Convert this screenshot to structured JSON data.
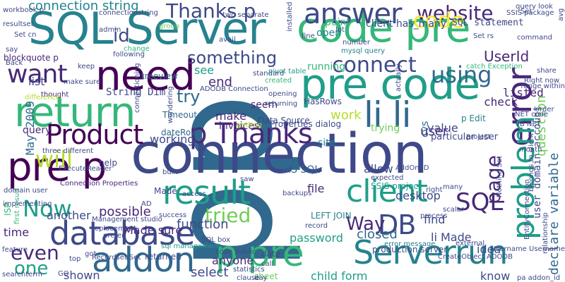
{
  "palette": {
    "p0": "#440154",
    "p1": "#482878",
    "p2": "#3e4989",
    "p3": "#31688e",
    "p4": "#26828e",
    "p5": "#1f9e89",
    "p6": "#35b779",
    "p7": "#6ece58",
    "p8": "#b5de2b",
    "p9": "#fde725"
  },
  "words": [
    {
      "text": "pp",
      "color": "p3"
    },
    {
      "text": "connection",
      "color": "p2"
    },
    {
      "text": "SQL Server",
      "color": "p4"
    },
    {
      "text": "code pre",
      "color": "p6"
    },
    {
      "text": "pre code",
      "color": "p5"
    },
    {
      "text": "need",
      "color": "p0"
    },
    {
      "text": "return",
      "color": "p6"
    },
    {
      "text": "pre p",
      "color": "p0"
    },
    {
      "text": "error",
      "color": "p1"
    },
    {
      "text": "database",
      "color": "p2"
    },
    {
      "text": "addon",
      "color": "p3"
    },
    {
      "text": "result",
      "color": "p5"
    },
    {
      "text": "p pre",
      "color": "p6"
    },
    {
      "text": "li li",
      "color": "p3"
    },
    {
      "text": "Product",
      "color": "p0"
    },
    {
      "text": "p Thanks",
      "color": "p1"
    },
    {
      "text": "want",
      "color": "p1"
    },
    {
      "text": "client",
      "color": "p5"
    },
    {
      "text": "Serverrun",
      "color": "p4"
    },
    {
      "text": "problem",
      "color": "p5"
    },
    {
      "text": "answer",
      "color": "p2"
    },
    {
      "text": "website",
      "color": "p1"
    },
    {
      "text": "Thanks p",
      "color": "p2"
    },
    {
      "text": "connect",
      "color": "p2"
    },
    {
      "text": "using",
      "color": "p3"
    },
    {
      "text": "id",
      "color": "p2"
    },
    {
      "text": "will",
      "color": "p8"
    },
    {
      "text": "Now",
      "color": "p5"
    },
    {
      "text": "DB",
      "color": "p2"
    },
    {
      "text": "SQL",
      "color": "p1"
    },
    {
      "text": "page",
      "color": "p1"
    },
    {
      "text": "even",
      "color": "p1"
    },
    {
      "text": "one",
      "color": "p5"
    },
    {
      "text": "tried",
      "color": "p7"
    },
    {
      "text": "Way",
      "color": "p1"
    },
    {
      "text": "something",
      "color": "p2"
    },
    {
      "text": "try",
      "color": "p3"
    },
    {
      "text": "connection string",
      "color": "p4"
    },
    {
      "text": "code",
      "color": "p9"
    },
    {
      "text": "UserId",
      "color": "p1"
    },
    {
      "text": "declare variable",
      "color": "p3"
    },
    {
      "text": "user domain account",
      "color": "p2"
    },
    {
      "text": "question",
      "color": "p7"
    },
    {
      "text": "May 2009",
      "color": "p3"
    },
    {
      "text": "SQL statement",
      "color": "p2"
    },
    {
      "text": "String Dim",
      "color": "p2"
    },
    {
      "text": "work",
      "color": "p8"
    },
    {
      "text": "user",
      "color": "p1"
    },
    {
      "text": "list",
      "color": "p2"
    },
    {
      "text": "end",
      "color": "p1"
    },
    {
      "text": "see",
      "color": "p5"
    },
    {
      "text": "closed",
      "color": "p3"
    },
    {
      "text": "listed",
      "color": "p1"
    },
    {
      "text": "check",
      "color": "p1"
    },
    {
      "text": "value",
      "color": "p2"
    },
    {
      "text": "make",
      "color": "p1"
    },
    {
      "text": "seem",
      "color": "p1"
    },
    {
      "text": "working",
      "color": "p2"
    },
    {
      "text": "function",
      "color": "p2"
    },
    {
      "text": "possible",
      "color": "p1"
    },
    {
      "text": "Made sure",
      "color": "p1"
    },
    {
      "text": "another",
      "color": "p2"
    },
    {
      "text": "time",
      "color": "p1"
    },
    {
      "text": "select",
      "color": "p2"
    },
    {
      "text": "anyone",
      "color": "p1"
    },
    {
      "text": "shown",
      "color": "p2"
    },
    {
      "text": "idea",
      "color": "p2"
    },
    {
      "text": "li Made",
      "color": "p2"
    },
    {
      "text": "find",
      "color": "p2"
    },
    {
      "text": "password",
      "color": "p5"
    },
    {
      "text": "allow",
      "color": "p2"
    },
    {
      "text": "file",
      "color": "p1"
    },
    {
      "text": "desktop",
      "color": "p2"
    },
    {
      "text": "know",
      "color": "p2"
    },
    {
      "text": "child form",
      "color": "p5"
    },
    {
      "text": "invoices",
      "color": "p1"
    },
    {
      "text": "query",
      "color": "p1"
    },
    {
      "text": "open",
      "color": "p4"
    },
    {
      "text": "running",
      "color": "p6"
    },
    {
      "text": "point",
      "color": "p6"
    },
    {
      "text": "client has_many",
      "color": "p2"
    },
    {
      "text": "trying",
      "color": "p7"
    },
    {
      "text": "site",
      "color": "p4"
    },
    {
      "text": "MS SQL",
      "color": "p3"
    },
    {
      "text": "cvs",
      "color": "p3"
    },
    {
      "text": "p Edit",
      "color": "p4"
    },
    {
      "text": "particular user",
      "color": "p2"
    },
    {
      "text": "production server",
      "color": "p2"
    },
    {
      "text": "blockquote p",
      "color": "p1"
    },
    {
      "text": "treeview",
      "color": "p3"
    },
    {
      "text": "Timeout",
      "color": "p3"
    },
    {
      "text": "dateRows",
      "color": "p3"
    },
    {
      "text": "Properties dialog",
      "color": "p2"
    },
    {
      "text": "HasRows",
      "color": "p2"
    },
    {
      "text": "Data Source",
      "color": "p2"
    },
    {
      "text": "Made",
      "color": "p2"
    },
    {
      "text": "ISP",
      "color": "p6"
    },
    {
      "text": "help",
      "color": "p2"
    },
    {
      "text": "thought",
      "color": "p1"
    },
    {
      "text": "LEFT JOIN",
      "color": "p4"
    },
    {
      "text": "returned",
      "color": "p2"
    },
    {
      "text": "sheet",
      "color": "p7"
    },
    {
      "text": "date",
      "color": "p2"
    },
    {
      "text": "call",
      "color": "p2"
    },
    {
      "text": "SSIS project",
      "color": "p5"
    },
    {
      "text": "record",
      "color": "p2"
    },
    {
      "text": "mysql query",
      "color": "p4"
    },
    {
      "text": "standard",
      "color": "p2"
    },
    {
      "text": "change",
      "color": "p6"
    },
    {
      "text": "catch Exception",
      "color": "p6"
    },
    {
      "text": "Right now",
      "color": "p2"
    },
    {
      "text": "Set rs",
      "color": "p2"
    },
    {
      "text": "workbook p",
      "color": "p2"
    },
    {
      "text": "resultset",
      "color": "p2"
    },
    {
      "text": "Set cn",
      "color": "p2"
    },
    {
      "text": "Back",
      "color": "p2"
    },
    {
      "text": "say",
      "color": "p2"
    },
    {
      "text": "following",
      "color": "p2"
    },
    {
      "text": "keep",
      "color": "p2"
    },
    {
      "text": "make sure",
      "color": "p2"
    },
    {
      "text": "difference",
      "color": "p8"
    },
    {
      "text": "ADODB Connection",
      "color": "p2"
    },
    {
      "text": "connectionstring",
      "color": "p2"
    },
    {
      "text": "admin",
      "color": "p2"
    },
    {
      "text": "group",
      "color": "p7"
    },
    {
      "text": "two separate",
      "color": "p2"
    },
    {
      "text": "lot",
      "color": "p2"
    },
    {
      "text": "SSIS package",
      "color": "p2"
    },
    {
      "text": "query look",
      "color": "p2"
    },
    {
      "text": "command",
      "color": "p2"
    },
    {
      "text": "number",
      "color": "p2"
    },
    {
      "text": "avail",
      "color": "p2"
    },
    {
      "text": "fine",
      "color": "p2"
    },
    {
      "text": "pivot table",
      "color": "p5"
    },
    {
      "text": "created",
      "color": "p6"
    },
    {
      "text": "first result",
      "color": "p6"
    },
    {
      "text": "three different",
      "color": "p2"
    },
    {
      "text": "ExecuteReader",
      "color": "p2"
    },
    {
      "text": "Connection Properties",
      "color": "p1"
    },
    {
      "text": "Management studio",
      "color": "p2"
    },
    {
      "text": "replacement",
      "color": "p2"
    },
    {
      "text": "sql management",
      "color": "p5"
    },
    {
      "text": "Recordset Set",
      "color": "p2"
    },
    {
      "text": "statistics",
      "color": "p2"
    },
    {
      "text": "SQL box",
      "color": "p2"
    },
    {
      "text": "belongs to client",
      "color": "p2"
    },
    {
      "text": "EntityConnection",
      "color": "p2"
    },
    {
      "text": "Nothing Set",
      "color": "p2"
    },
    {
      "text": "VB NET",
      "color": "p2"
    },
    {
      "text": "NET code",
      "color": "p2"
    },
    {
      "text": "Username Username",
      "color": "p2"
    },
    {
      "text": "pa addon_id",
      "color": "p2"
    },
    {
      "text": "range within",
      "color": "p2"
    },
    {
      "text": "AddOn ID",
      "color": "p2"
    },
    {
      "text": "opening",
      "color": "p2"
    },
    {
      "text": "returning",
      "color": "p2"
    },
    {
      "text": "getting",
      "color": "p8"
    },
    {
      "text": "prefer",
      "color": "p2"
    },
    {
      "text": "error message",
      "color": "p4"
    },
    {
      "text": "expected",
      "color": "p2"
    },
    {
      "text": "backups",
      "color": "p2"
    },
    {
      "text": "access",
      "color": "p2"
    },
    {
      "text": "success",
      "color": "p2"
    },
    {
      "text": "domain user",
      "color": "p2"
    },
    {
      "text": "implementing",
      "color": "p2"
    },
    {
      "text": "got",
      "color": "p2"
    },
    {
      "text": "feature",
      "color": "p2"
    },
    {
      "text": "searchterm",
      "color": "p2"
    },
    {
      "text": "GO",
      "color": "p2"
    },
    {
      "text": "top",
      "color": "p2"
    },
    {
      "text": "day",
      "color": "p2"
    },
    {
      "text": "clause",
      "color": "p2"
    },
    {
      "text": "external",
      "color": "p2"
    },
    {
      "text": "process",
      "color": "p2"
    },
    {
      "text": "scalar",
      "color": "p2"
    },
    {
      "text": "right",
      "color": "p2"
    },
    {
      "text": "many",
      "color": "p2"
    },
    {
      "text": "share",
      "color": "p2"
    },
    {
      "text": "order",
      "color": "p2"
    },
    {
      "text": "month",
      "color": "p2"
    },
    {
      "text": "project",
      "color": "p2"
    },
    {
      "text": "actually",
      "color": "p2"
    },
    {
      "text": "AD",
      "color": "p2"
    },
    {
      "text": "saw",
      "color": "p2"
    },
    {
      "text": "built",
      "color": "p2"
    },
    {
      "text": "code public",
      "color": "p2"
    },
    {
      "text": "CreateObject ADODB",
      "color": "p2"
    },
    {
      "text": "installed",
      "color": "p2"
    },
    {
      "text": "connectioning",
      "color": "p2"
    },
    {
      "text": "wondering",
      "color": "p2"
    },
    {
      "text": "relationship",
      "color": "p2"
    },
    {
      "text": "avg",
      "color": "p2"
    },
    {
      "text": "Set",
      "color": "p2"
    }
  ]
}
